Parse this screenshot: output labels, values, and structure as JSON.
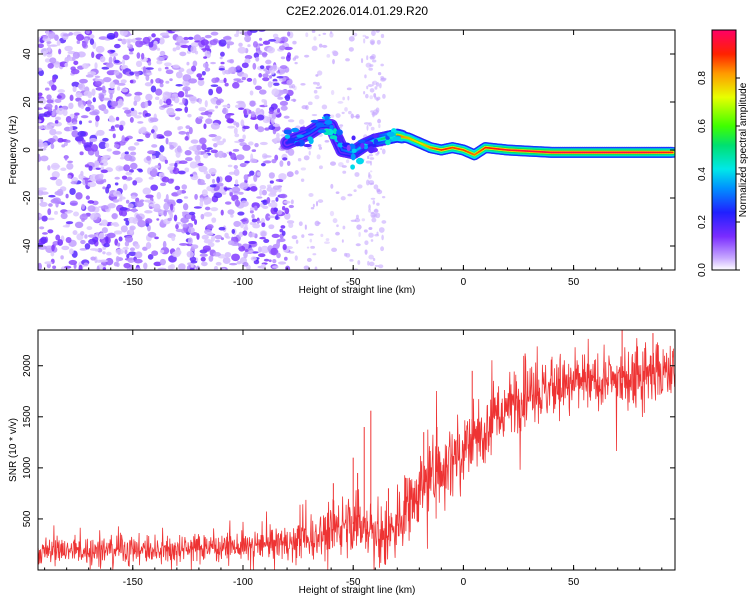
{
  "title": "C2E2.2026.014.01.29.R20",
  "colors": {
    "series": "#ee3333",
    "axis": "#000000",
    "background": "#ffffff"
  },
  "chart_data": [
    {
      "type": "heatmap",
      "title": "C2E2.2026.014.01.29.R20",
      "xlabel": "Height of straight line (km)",
      "ylabel": "Frequency (Hz)",
      "xlim": [
        -193,
        96
      ],
      "ylim": [
        -50,
        50
      ],
      "xticks": [
        -150,
        -100,
        -50,
        0,
        50
      ],
      "xtick_labels": [
        "-150",
        "-100",
        "-50",
        "0",
        "50"
      ],
      "yticks": [
        -40,
        -20,
        0,
        20,
        40
      ],
      "ytick_labels": [
        "-40",
        "-20",
        "0",
        "20",
        "40"
      ],
      "colorbar": {
        "label": "Normalized spectral amplitude",
        "range": [
          0,
          1
        ],
        "ticks": [
          0.0,
          0.2,
          0.4,
          0.6,
          0.8
        ],
        "tick_labels": [
          "0.0",
          "0.2",
          "0.4",
          "0.6",
          "0.8"
        ],
        "colormap": "rainbow (purple to red)"
      },
      "ridge": {
        "description": "dominant spectral frequency line (x km, frequency Hz, normalized amplitude)",
        "points": [
          {
            "x": -80,
            "y": 3,
            "a": 0.25
          },
          {
            "x": -75,
            "y": 5,
            "a": 0.3
          },
          {
            "x": -70,
            "y": 7,
            "a": 0.3
          },
          {
            "x": -65,
            "y": 10,
            "a": 0.3
          },
          {
            "x": -60,
            "y": 10,
            "a": 0.28
          },
          {
            "x": -55,
            "y": 0,
            "a": 0.3
          },
          {
            "x": -50,
            "y": -1,
            "a": 0.35
          },
          {
            "x": -45,
            "y": 2,
            "a": 0.4
          },
          {
            "x": -40,
            "y": 4,
            "a": 0.45
          },
          {
            "x": -35,
            "y": 5,
            "a": 0.55
          },
          {
            "x": -30,
            "y": 6,
            "a": 0.85
          },
          {
            "x": -25,
            "y": 5,
            "a": 0.8
          },
          {
            "x": -20,
            "y": 3,
            "a": 0.75
          },
          {
            "x": -15,
            "y": 1,
            "a": 0.85
          },
          {
            "x": -10,
            "y": 0,
            "a": 0.9
          },
          {
            "x": -5,
            "y": 1,
            "a": 0.88
          },
          {
            "x": 0,
            "y": 0,
            "a": 0.88
          },
          {
            "x": 5,
            "y": -2,
            "a": 0.85
          },
          {
            "x": 10,
            "y": 1,
            "a": 0.9
          },
          {
            "x": 20,
            "y": 0,
            "a": 0.95
          },
          {
            "x": 40,
            "y": -1,
            "a": 0.97
          },
          {
            "x": 60,
            "y": -1,
            "a": 0.97
          },
          {
            "x": 80,
            "y": -1,
            "a": 0.97
          },
          {
            "x": 95,
            "y": -1,
            "a": 0.92
          }
        ]
      }
    },
    {
      "type": "line",
      "title": "",
      "xlabel": "Height of straight line (km)",
      "ylabel": "SNR (10 * v/v)",
      "xlim": [
        -193,
        96
      ],
      "ylim": [
        0,
        2350
      ],
      "xticks": [
        -150,
        -100,
        -50,
        0,
        50
      ],
      "xtick_labels": [
        "-150",
        "-100",
        "-50",
        "0",
        "50"
      ],
      "yticks": [
        500,
        1000,
        1500,
        2000
      ],
      "ytick_labels": [
        "500",
        "1000",
        "1500",
        "2000"
      ],
      "series": [
        {
          "name": "SNR",
          "color": "#ee3333",
          "mean_profile": {
            "x": [
              -193,
              -150,
              -100,
              -80,
              -70,
              -60,
              -50,
              -40,
              -35,
              -30,
              -25,
              -20,
              -10,
              0,
              10,
              20,
              30,
              40,
              60,
              80,
              96
            ],
            "y": [
              180,
              200,
              230,
              270,
              320,
              380,
              450,
              380,
              300,
              420,
              600,
              800,
              1000,
              1200,
              1380,
              1600,
              1750,
              1800,
              1850,
              1900,
              1950
            ]
          },
          "spread": {
            "x": [
              -193,
              -100,
              -60,
              -40,
              -20,
              0,
              20,
              60,
              96
            ],
            "y": [
              120,
              130,
              200,
              280,
              300,
              350,
              300,
              250,
              250
            ]
          },
          "spikes": [
            {
              "x": -59,
              "y": 850
            },
            {
              "x": -50,
              "y": 1100
            },
            {
              "x": -48,
              "y": 950
            },
            {
              "x": -45,
              "y": 1400
            },
            {
              "x": -42,
              "y": 1560
            },
            {
              "x": -34,
              "y": 800
            },
            {
              "x": -26,
              "y": 900
            },
            {
              "x": -18,
              "y": 1350
            },
            {
              "x": -12,
              "y": 1400
            },
            {
              "x": 4,
              "y": 1950
            },
            {
              "x": 28,
              "y": 2120
            },
            {
              "x": 72,
              "y": 2350
            },
            {
              "x": 86,
              "y": 2320
            }
          ]
        }
      ]
    }
  ]
}
